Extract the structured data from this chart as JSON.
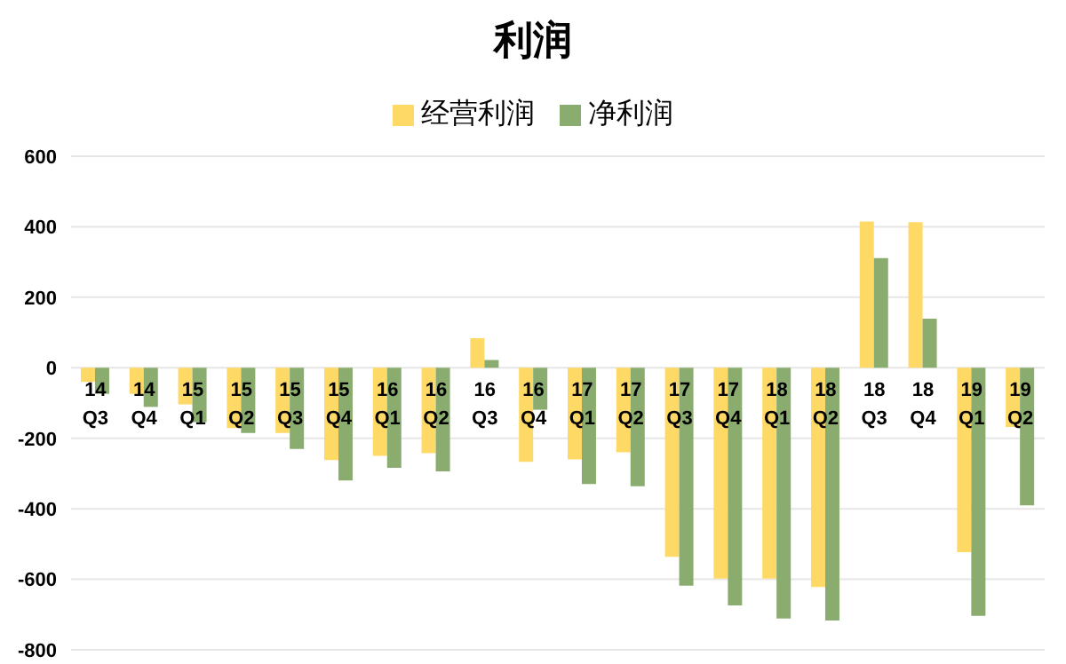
{
  "chart_data": {
    "type": "bar",
    "title": "利润",
    "categories": [
      "14\nQ3",
      "14\nQ4",
      "15\nQ1",
      "15\nQ2",
      "15\nQ3",
      "15\nQ4",
      "16\nQ1",
      "16\nQ2",
      "16\nQ3",
      "16\nQ4",
      "17\nQ1",
      "17\nQ2",
      "17\nQ3",
      "17\nQ4",
      "18\nQ1",
      "18\nQ2",
      "18\nQ3",
      "18\nQ4",
      "19\nQ1",
      "19\nQ2"
    ],
    "series": [
      {
        "name": "经营利润",
        "color": "#ffd966",
        "values": [
          -40,
          -74,
          -104,
          -171,
          -185,
          -262,
          -250,
          -242,
          84,
          -267,
          -260,
          -240,
          -536,
          -598,
          -598,
          -622,
          415,
          413,
          -523,
          -168
        ]
      },
      {
        "name": "净利润",
        "color": "#8aac6e",
        "values": [
          -74,
          -111,
          -154,
          -185,
          -230,
          -320,
          -284,
          -294,
          22,
          -119,
          -330,
          -336,
          -618,
          -674,
          -711,
          -717,
          311,
          139,
          -704,
          -390
        ]
      }
    ],
    "ylim": [
      -800,
      600
    ],
    "yticks": [
      -800,
      -600,
      -400,
      -200,
      0,
      200,
      400,
      600
    ],
    "grid": "y",
    "legend": "top"
  }
}
